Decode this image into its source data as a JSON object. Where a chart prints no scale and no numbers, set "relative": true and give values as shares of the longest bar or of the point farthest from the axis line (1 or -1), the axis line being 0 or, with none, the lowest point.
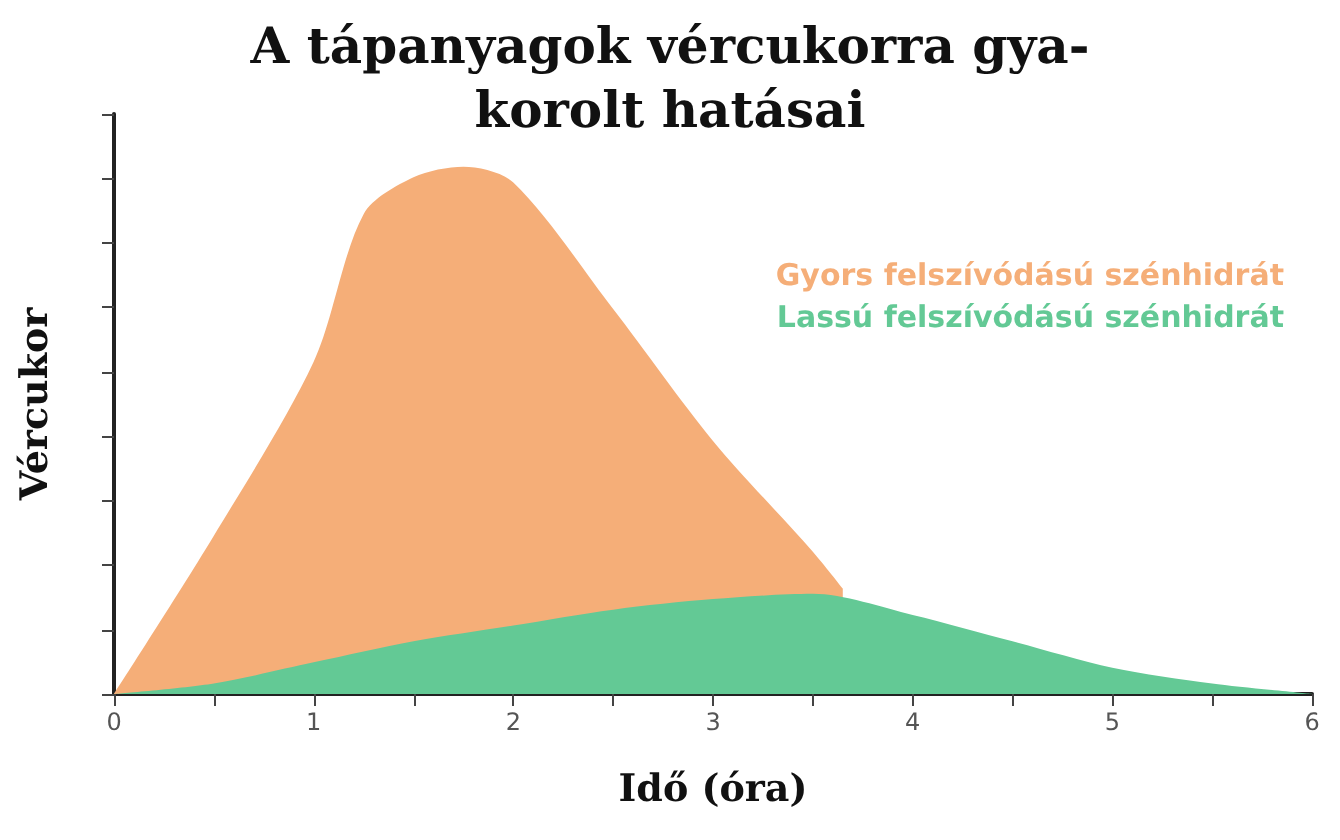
{
  "chart_data": {
    "type": "area",
    "title": "A tápanyagok vércukorra gya-\nkorolt hatásai",
    "xlabel": "Idő (óra)",
    "ylabel": "Vércukor",
    "relative": true,
    "xlim": [
      0,
      6
    ],
    "xticks": [
      0,
      {
        "value": 0.5,
        "label": null
      },
      1,
      {
        "value": 1.5,
        "label": null
      },
      2,
      {
        "value": 2.5,
        "label": null
      },
      3,
      {
        "value": 3.5,
        "label": null
      },
      4,
      {
        "value": 4.5,
        "label": null
      },
      5,
      {
        "value": 5.5,
        "label": null
      },
      6
    ],
    "tick_labels": "x",
    "grid": false,
    "legend": "right",
    "marker": "none",
    "series": [
      {
        "name": "Gyors felszívódású szénhidrát",
        "color": "#f5ae78",
        "x": [
          0,
          0.5,
          1,
          1.25,
          1.5,
          1.75,
          2,
          2.5,
          3,
          3.5,
          3.65
        ],
        "values": [
          0,
          0.3,
          0.63,
          0.91,
          0.98,
          1,
          0.97,
          0.73,
          0.48,
          0.27,
          0.2
        ]
      },
      {
        "name": "Lassú felszívódású szénhidrát",
        "color": "#63c995",
        "x": [
          0,
          0.5,
          1,
          1.5,
          2,
          2.5,
          3,
          3.5,
          4,
          4.5,
          5,
          5.5,
          6
        ],
        "values": [
          0,
          0.02,
          0.06,
          0.1,
          0.13,
          0.16,
          0.18,
          0.19,
          0.15,
          0.1,
          0.05,
          0.02,
          0
        ]
      }
    ]
  }
}
